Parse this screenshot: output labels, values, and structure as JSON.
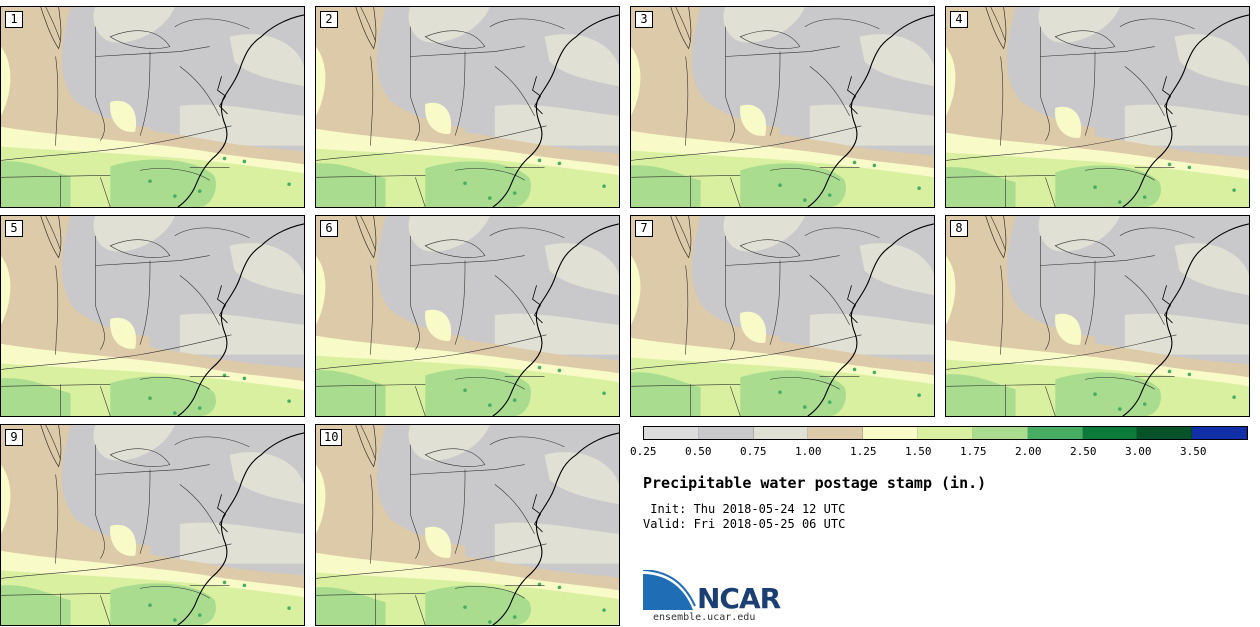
{
  "colors": {
    "c025": "#dcdcdc",
    "c050": "#c9c9cc",
    "c075": "#e0e0d5",
    "c100": "#dccaa8",
    "c125": "#f8fac8",
    "c150": "#d9f0a0",
    "c175": "#a9dc8e",
    "c200": "#46ad63",
    "c250": "#0c7a38",
    "c300": "#08522a",
    "c350": "#1130a8",
    "border": "#333333"
  },
  "panels": [
    {
      "label": "1"
    },
    {
      "label": "2"
    },
    {
      "label": "3"
    },
    {
      "label": "4"
    },
    {
      "label": "5"
    },
    {
      "label": "6"
    },
    {
      "label": "7"
    },
    {
      "label": "8"
    },
    {
      "label": "9"
    },
    {
      "label": "10"
    }
  ],
  "legend": {
    "ticks": [
      "0.25",
      "0.50",
      "0.75",
      "1.00",
      "1.25",
      "1.50",
      "1.75",
      "2.00",
      "2.50",
      "3.00",
      "3.50"
    ]
  },
  "title": "Precipitable water postage stamp (in.)",
  "init": " Init: Thu 2018-05-24 12 UTC",
  "valid": "Valid: Fri 2018-05-25 06 UTC",
  "logo": {
    "name": "NCAR",
    "url": "ensemble.ucar.edu"
  }
}
